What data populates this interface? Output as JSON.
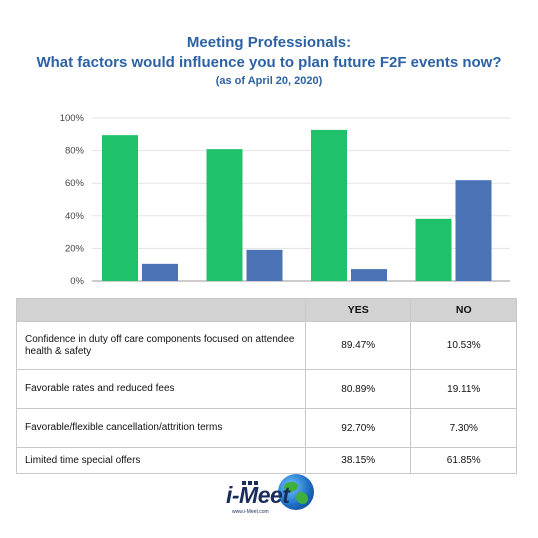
{
  "title": {
    "line1": "Meeting Professionals:",
    "line2": "What factors would influence you to plan future F2F events now?",
    "subtitle": "(as of April 20, 2020)"
  },
  "chart_data": {
    "type": "bar",
    "categories": [
      "Confidence in duty off care components focused on attendee health & safety",
      "Favorable rates and reduced fees",
      "Favorable/flexible cancellation/attrition terms",
      "Limited time special offers"
    ],
    "series": [
      {
        "name": "YES",
        "color": "#1fc26b",
        "values": [
          89.47,
          80.89,
          92.7,
          38.15
        ]
      },
      {
        "name": "NO",
        "color": "#4a72b5",
        "values": [
          10.53,
          19.11,
          7.3,
          61.85
        ]
      }
    ],
    "yticks": [
      "0%",
      "20%",
      "40%",
      "60%",
      "80%",
      "100%"
    ],
    "ylim": [
      0,
      100
    ],
    "grid": true
  },
  "table": {
    "headers": [
      "",
      "YES",
      "NO"
    ],
    "rows": [
      {
        "label": "Confidence in duty off care components focused on attendee health & safety",
        "yes": "89.47%",
        "no": "10.53%"
      },
      {
        "label": "Favorable rates and reduced fees",
        "yes": "80.89%",
        "no": "19.11%"
      },
      {
        "label": "Favorable/flexible cancellation/attrition terms",
        "yes": "92.70%",
        "no": "7.30%"
      },
      {
        "label": "Limited time special offers",
        "yes": "38.15%",
        "no": "61.85%"
      }
    ]
  },
  "logo": {
    "text": "i-Meet",
    "url": "www.i-Meet.com"
  }
}
